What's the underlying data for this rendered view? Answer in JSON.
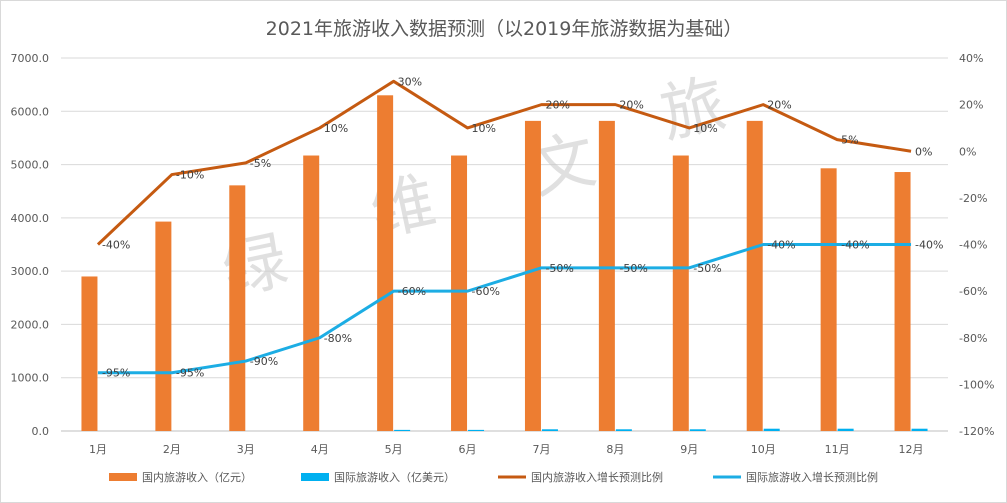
{
  "chart_data": {
    "type": "bar+line",
    "title": "2021年旅游收入数据预测（以2019年旅游数据为基础）",
    "categories": [
      "1月",
      "2月",
      "3月",
      "4月",
      "5月",
      "6月",
      "7月",
      "8月",
      "9月",
      "10月",
      "11月",
      "12月"
    ],
    "left_axis": {
      "range": [
        0,
        7000
      ],
      "ticks": [
        "0.0",
        "1000.0",
        "2000.0",
        "3000.0",
        "4000.0",
        "5000.0",
        "6000.0",
        "7000.0"
      ]
    },
    "right_axis": {
      "range": [
        -120,
        40
      ],
      "ticks": [
        "-120%",
        "-100%",
        "-80%",
        "-60%",
        "-40%",
        "-20%",
        "0%",
        "20%",
        "40%"
      ]
    },
    "series": [
      {
        "name": "国内旅游收入（亿元）",
        "kind": "bar",
        "axis": "left",
        "color": "#ed7d31",
        "values": [
          2900,
          3930,
          4610,
          5170,
          6300,
          5170,
          5820,
          5820,
          5170,
          5820,
          4930,
          4860
        ]
      },
      {
        "name": "国际旅游收入（亿美元）",
        "kind": "bar",
        "axis": "left",
        "color": "#00b0f0",
        "values": [
          0,
          0,
          0,
          0,
          21,
          21,
          32,
          32,
          32,
          43,
          43,
          43
        ]
      },
      {
        "name": "国内旅游收入增长预测比例",
        "kind": "line",
        "axis": "right",
        "color": "#c55a11",
        "values": [
          -40,
          -10,
          -5,
          10,
          30,
          10,
          20,
          20,
          10,
          20,
          5,
          0
        ],
        "labels": [
          "-40%",
          "-10%",
          "-5%",
          "10%",
          "30%",
          "10%",
          "20%",
          "20%",
          "10%",
          "20%",
          "5%",
          "0%"
        ]
      },
      {
        "name": "国际旅游收入增长预测比例",
        "kind": "line",
        "axis": "right",
        "color": "#1cade4",
        "values": [
          -95,
          -95,
          -90,
          -80,
          -60,
          -60,
          -50,
          -50,
          -50,
          -40,
          -40,
          -40
        ],
        "labels": [
          "-95%",
          "-95%",
          "-90%",
          "-80%",
          "-60%",
          "-60%",
          "-50%",
          "-50%",
          "-50%",
          "-40%",
          "-40%",
          "-40%"
        ]
      }
    ],
    "legend_position": "bottom",
    "grid": true
  },
  "watermark": [
    "绿",
    "维",
    "文",
    "旅"
  ]
}
